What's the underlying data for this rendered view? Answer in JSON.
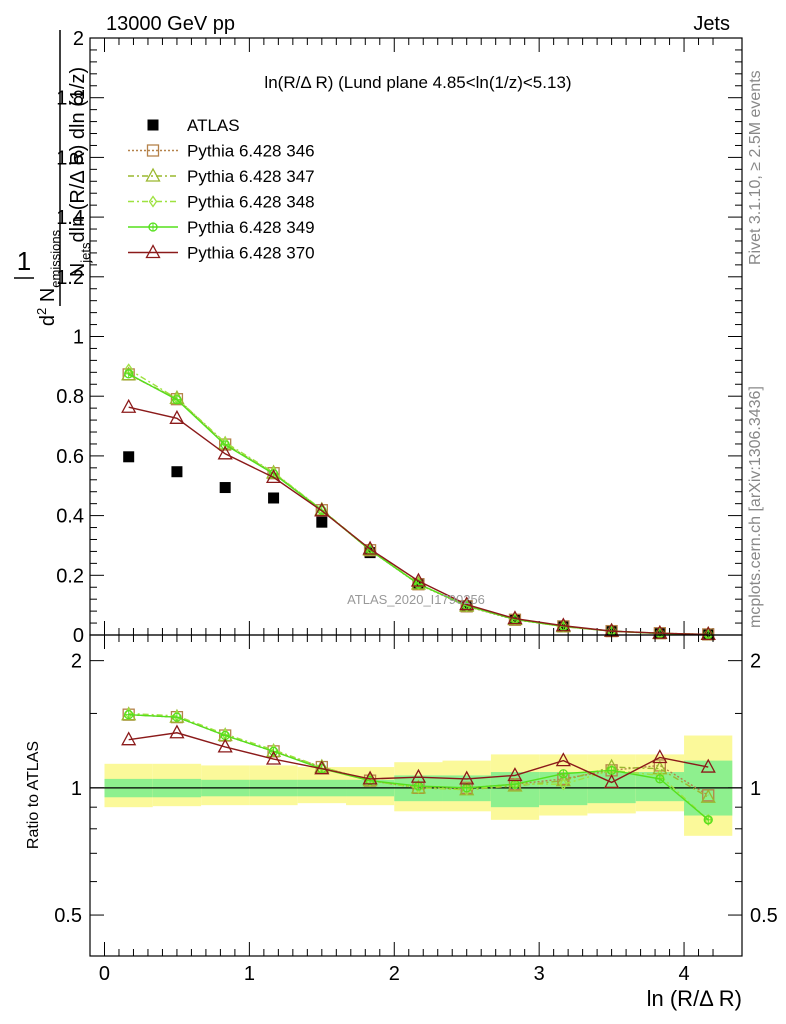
{
  "header": {
    "left": "13000 GeV pp",
    "right": "Jets"
  },
  "side_text": {
    "rivet": "Rivet 3.1.10, ≥ 2.5M events",
    "mcplots": "mcplots.cern.ch [arXiv:1306.3436]"
  },
  "chart_data": [
    {
      "type": "scatter",
      "panel": "main",
      "title": "ln(R/Δ R) (Lund plane 4.85<ln(1/z)<5.13)",
      "ylabel": "1/N_jets d²N_emissions/dln(R/ΔR) dln(1/z)",
      "xlim": [
        -0.1,
        4.4
      ],
      "ylim": [
        0,
        2
      ],
      "yticks": [
        0,
        0.2,
        0.4,
        0.6,
        0.8,
        1,
        1.2,
        1.4,
        1.6,
        1.8,
        2
      ],
      "ytick_labels": [
        "0",
        "0.2",
        "0.4",
        "0.6",
        "0.8",
        "1",
        "1.2",
        "1.4",
        "1.6",
        "1.8",
        "2"
      ],
      "watermark": "ATLAS_2020_I1790256",
      "x": [
        0.167,
        0.5,
        0.833,
        1.167,
        1.5,
        1.833,
        2.167,
        2.5,
        2.833,
        3.167,
        3.5,
        3.833,
        4.167
      ],
      "series": [
        {
          "name": "ATLAS",
          "marker": "filled-square",
          "color": "#000000",
          "values": [
            0.597,
            0.547,
            0.494,
            0.459,
            0.378,
            0.276,
            0.172,
            0.098,
            0.052,
            0.027,
            0.012,
            0.005,
            0.002
          ]
        },
        {
          "name": "Pythia 6.428 346",
          "marker": "open-square",
          "color": "#b5824a",
          "values": [
            0.873,
            0.79,
            0.638,
            0.542,
            0.418,
            0.284,
            0.17,
            0.096,
            0.051,
            0.029,
            0.013,
            0.006,
            0.002
          ]
        },
        {
          "name": "Pythia 6.428 347",
          "marker": "open-triangle",
          "color": "#9ab82f",
          "values": [
            0.872,
            0.793,
            0.64,
            0.543,
            0.419,
            0.285,
            0.171,
            0.097,
            0.052,
            0.028,
            0.013,
            0.005,
            0.002
          ]
        },
        {
          "name": "Pythia 6.428 348",
          "marker": "open-diamond",
          "color": "#9ee23f",
          "values": [
            0.89,
            0.792,
            0.645,
            0.545,
            0.42,
            0.286,
            0.172,
            0.097,
            0.053,
            0.028,
            0.013,
            0.006,
            0.002
          ]
        },
        {
          "name": "Pythia 6.428 349",
          "marker": "open-circle-cross",
          "color": "#55e01c",
          "values": [
            0.875,
            0.788,
            0.637,
            0.54,
            0.418,
            0.284,
            0.171,
            0.098,
            0.052,
            0.029,
            0.013,
            0.005,
            0.002
          ]
        },
        {
          "name": "Pythia 6.428 370",
          "marker": "open-triangle",
          "color": "#8b1a1a",
          "values": [
            0.763,
            0.726,
            0.607,
            0.528,
            0.416,
            0.288,
            0.181,
            0.102,
            0.055,
            0.031,
            0.013,
            0.006,
            0.002
          ]
        }
      ]
    },
    {
      "type": "line",
      "panel": "ratio",
      "ylabel": "Ratio to ATLAS",
      "xlabel": "ln (R/Δ R)",
      "xlim": [
        -0.1,
        4.4
      ],
      "ylim": [
        0.4,
        2.3
      ],
      "yscale": "log",
      "xticks": [
        0,
        1,
        2,
        3,
        4
      ],
      "xtick_labels": [
        "0",
        "1",
        "2",
        "3",
        "4"
      ],
      "yticks": [
        0.5,
        1,
        2
      ],
      "ytick_labels": [
        "0.5",
        "1",
        "2"
      ],
      "x": [
        0.167,
        0.5,
        0.833,
        1.167,
        1.5,
        1.833,
        2.167,
        2.5,
        2.833,
        3.167,
        3.5,
        3.833,
        4.167
      ],
      "bin_edges": [
        0,
        0.333,
        0.667,
        1,
        1.333,
        1.667,
        2,
        2.333,
        2.667,
        3,
        3.333,
        3.667,
        4,
        4.333
      ],
      "band_inner": {
        "color": "#8ef08e",
        "low": [
          0.95,
          0.95,
          0.955,
          0.955,
          0.955,
          0.955,
          0.93,
          0.93,
          0.9,
          0.91,
          0.92,
          0.93,
          0.86
        ],
        "high": [
          1.05,
          1.05,
          1.045,
          1.045,
          1.045,
          1.045,
          1.07,
          1.07,
          1.09,
          1.09,
          1.09,
          1.09,
          1.16
        ]
      },
      "band_outer": {
        "color": "#fbf99a",
        "low": [
          0.9,
          0.905,
          0.91,
          0.91,
          0.92,
          0.91,
          0.88,
          0.88,
          0.84,
          0.86,
          0.87,
          0.88,
          0.77
        ],
        "high": [
          1.14,
          1.14,
          1.13,
          1.13,
          1.12,
          1.12,
          1.15,
          1.16,
          1.2,
          1.2,
          1.2,
          1.2,
          1.33
        ]
      },
      "series": [
        {
          "name": "Pythia 6.428 346",
          "marker": "open-square",
          "color": "#b5824a",
          "values": [
            1.49,
            1.47,
            1.33,
            1.22,
            1.12,
            1.04,
            1.0,
            1.0,
            1.02,
            1.05,
            1.1,
            1.13,
            0.96
          ]
        },
        {
          "name": "Pythia 6.428 347",
          "marker": "open-triangle",
          "color": "#9ab82f",
          "values": [
            1.49,
            1.47,
            1.33,
            1.22,
            1.12,
            1.04,
            1.0,
            0.99,
            1.01,
            1.04,
            1.12,
            1.11,
            0.95
          ]
        },
        {
          "name": "Pythia 6.428 348",
          "marker": "open-diamond",
          "color": "#9ee23f",
          "values": [
            1.5,
            1.48,
            1.34,
            1.23,
            1.12,
            1.04,
            1.0,
            0.99,
            1.02,
            1.02,
            1.1,
            1.07,
            0.84
          ]
        },
        {
          "name": "Pythia 6.428 349",
          "marker": "open-circle-cross",
          "color": "#55e01c",
          "values": [
            1.49,
            1.47,
            1.33,
            1.22,
            1.11,
            1.04,
            1.01,
            1.0,
            1.02,
            1.08,
            1.1,
            1.05,
            0.84
          ]
        },
        {
          "name": "Pythia 6.428 370",
          "marker": "open-triangle",
          "color": "#8b1a1a",
          "values": [
            1.3,
            1.35,
            1.25,
            1.17,
            1.11,
            1.05,
            1.06,
            1.05,
            1.07,
            1.16,
            1.03,
            1.18,
            1.12
          ]
        }
      ]
    }
  ]
}
